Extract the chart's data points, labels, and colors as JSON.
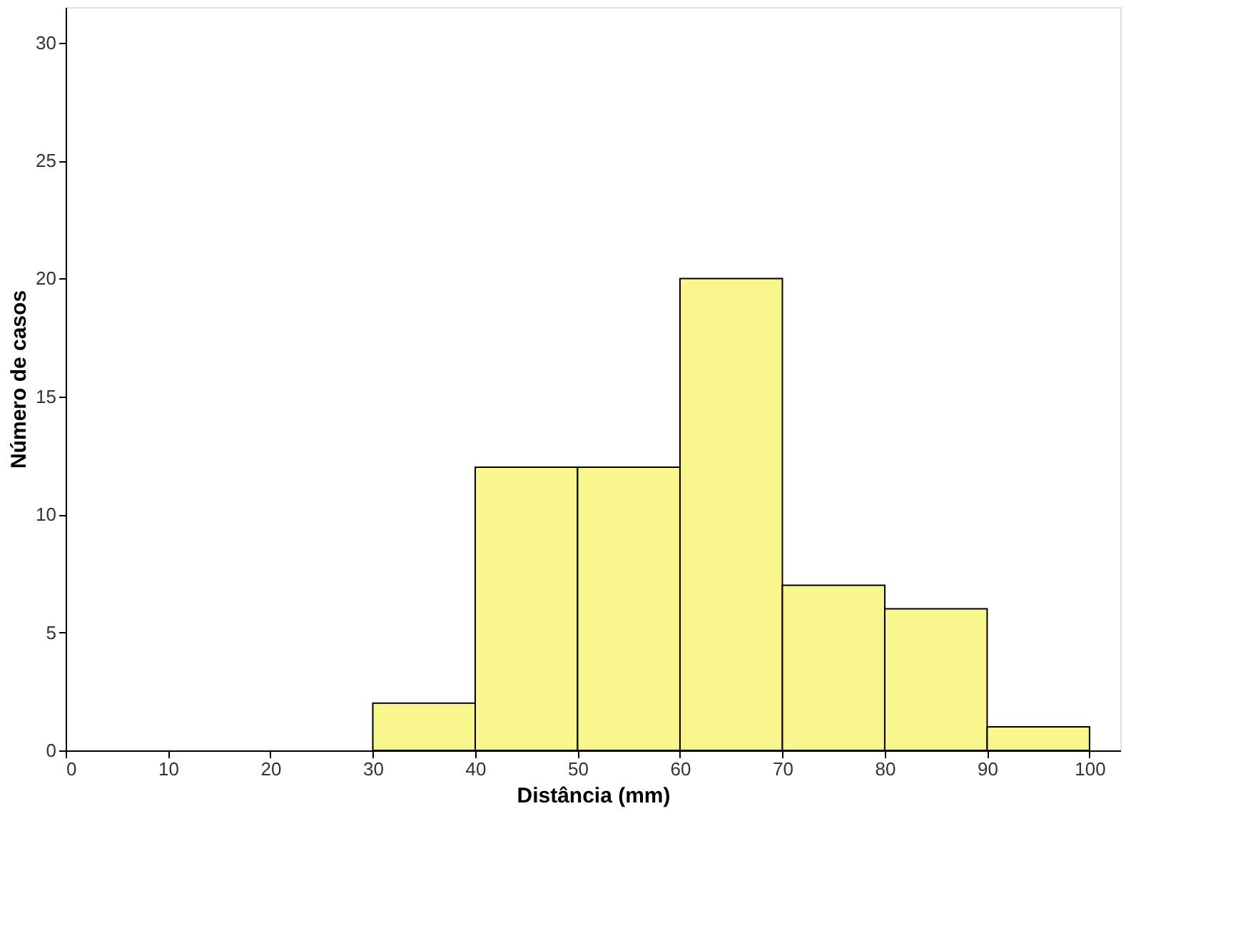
{
  "chart_data": {
    "type": "histogram",
    "xlabel": "Distância (mm)",
    "ylabel": "Número de casos",
    "bins": [
      30,
      40,
      50,
      60,
      70,
      80,
      90,
      100
    ],
    "values": [
      2,
      12,
      12,
      20,
      7,
      6,
      1
    ],
    "color": "#f8f68c",
    "xlim": [
      0,
      103
    ],
    "xticks": [
      0,
      10,
      20,
      30,
      40,
      50,
      60,
      70,
      80,
      90,
      100
    ],
    "ylim": [
      0,
      31.5
    ],
    "yticks": [
      0,
      5,
      10,
      15,
      20,
      25,
      30
    ],
    "grid": false
  }
}
